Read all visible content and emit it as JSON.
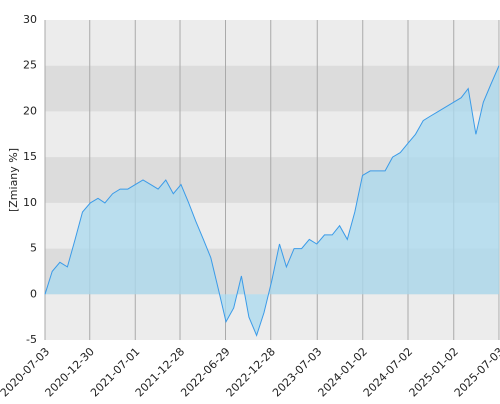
{
  "chart_data": {
    "type": "area",
    "y_label": "[Zmiany %]",
    "x": [
      "2020-07-03",
      "2020-08-01",
      "2020-09-01",
      "2020-10-01",
      "2020-11-01",
      "2020-12-01",
      "2021-01-01",
      "2021-02-01",
      "2021-03-01",
      "2021-04-01",
      "2021-05-01",
      "2021-06-01",
      "2021-07-01",
      "2021-08-01",
      "2021-09-01",
      "2021-10-01",
      "2021-11-01",
      "2021-12-01",
      "2022-01-01",
      "2022-02-01",
      "2022-03-01",
      "2022-04-01",
      "2022-05-01",
      "2022-06-01",
      "2022-07-01",
      "2022-08-01",
      "2022-09-01",
      "2022-10-01",
      "2022-11-01",
      "2022-12-01",
      "2023-01-01",
      "2023-02-01",
      "2023-03-01",
      "2023-04-01",
      "2023-05-01",
      "2023-06-01",
      "2023-07-01",
      "2023-08-01",
      "2023-09-01",
      "2023-10-01",
      "2023-11-01",
      "2023-12-01",
      "2024-01-01",
      "2024-02-01",
      "2024-03-01",
      "2024-04-01",
      "2024-05-01",
      "2024-06-01",
      "2024-07-01",
      "2024-08-01",
      "2024-09-01",
      "2024-10-01",
      "2024-11-01",
      "2024-12-01",
      "2025-01-01",
      "2025-02-01",
      "2025-03-01",
      "2025-04-01",
      "2025-05-01",
      "2025-06-01",
      "2025-07-03"
    ],
    "values": [
      0,
      2.5,
      3.5,
      3,
      6,
      9,
      10,
      10.5,
      10,
      11,
      11.5,
      11.5,
      12,
      12.5,
      12,
      11.5,
      12.5,
      11,
      12,
      10,
      8,
      6,
      4,
      0.5,
      -3,
      -1.5,
      2,
      -2.5,
      -4.5,
      -2,
      1.5,
      5.5,
      3,
      5,
      5,
      6,
      5.5,
      6.5,
      6.5,
      7.5,
      6,
      9,
      13,
      13.5,
      13.5,
      13.5,
      15,
      15.5,
      16.5,
      17.5,
      19,
      19.5,
      20,
      20.5,
      21,
      21.5,
      22.5,
      17.5,
      21,
      23,
      25
    ],
    "color": "#3b9be8",
    "fill": "#aad9ef",
    "xlim": [
      "2020-07-03",
      "2025-07-03"
    ],
    "xticks": [
      "2020-07-03",
      "2020-12-30",
      "2021-07-01",
      "2021-12-28",
      "2022-06-29",
      "2022-12-28",
      "2023-07-03",
      "2024-01-02",
      "2024-07-02",
      "2025-01-02",
      "2025-07-03"
    ],
    "ylim": [
      -5,
      30
    ],
    "yticks": [
      -5,
      0,
      5,
      10,
      15,
      20,
      25,
      30
    ],
    "grid": true
  }
}
